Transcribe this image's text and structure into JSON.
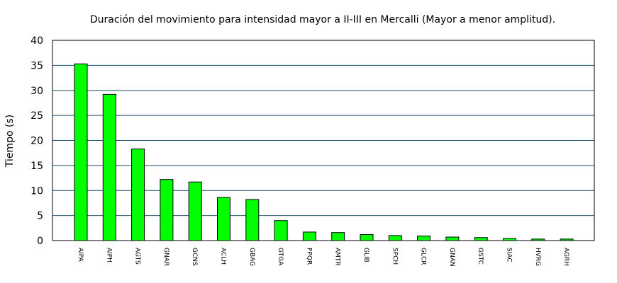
{
  "chart_data": {
    "type": "bar",
    "title": "Duración del movimiento para intensidad mayor a II-III en Mercalli (Mayor a menor amplitud).",
    "xlabel": "",
    "ylabel": "Tiempo (s)",
    "ylim": [
      0,
      40
    ],
    "yticks": [
      0,
      5,
      10,
      15,
      20,
      25,
      30,
      35,
      40
    ],
    "grid": true,
    "legend": "none",
    "bar_color": "#00ff00",
    "grid_color": "#1f4f6f",
    "categories": [
      "AIPA",
      "AIPH",
      "AGTS",
      "GNAR",
      "GCNS",
      "ACLH",
      "GBAG",
      "GTGA",
      "PPQR",
      "AMTR",
      "GLIB",
      "SPCH",
      "GLCR",
      "GNAN",
      "GSTC",
      "SIAC",
      "HVRG",
      "AGRH"
    ],
    "values": [
      35.3,
      29.2,
      18.3,
      12.2,
      11.7,
      8.6,
      8.2,
      4.0,
      1.7,
      1.6,
      1.2,
      1.0,
      0.9,
      0.7,
      0.6,
      0.4,
      0.3,
      0.3
    ]
  }
}
